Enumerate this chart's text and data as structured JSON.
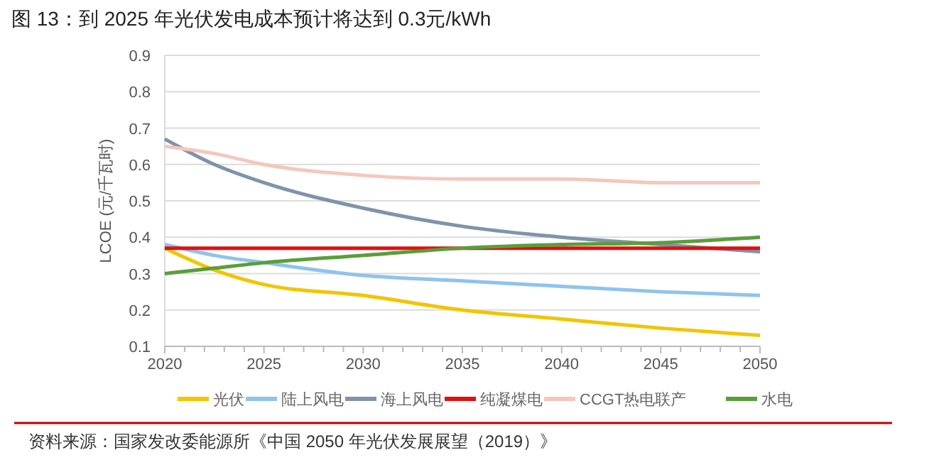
{
  "chart_data": {
    "type": "line",
    "title": "图 13：到 2025 年光伏发电成本预计将达到 0.3元/kWh",
    "ylabel": "LCOE (元/千瓦时)",
    "x": [
      2020,
      2022.5,
      2025,
      2030,
      2035,
      2040,
      2045,
      2050
    ],
    "series": [
      {
        "name": "光伏",
        "color": "#f2c500",
        "values": [
          0.37,
          0.31,
          0.27,
          0.24,
          0.2,
          0.175,
          0.15,
          0.13
        ]
      },
      {
        "name": "陆上风电",
        "color": "#8fc3ec",
        "values": [
          0.38,
          0.35,
          0.33,
          0.295,
          0.28,
          0.265,
          0.25,
          0.24
        ]
      },
      {
        "name": "海上风电",
        "color": "#7f93ab",
        "values": [
          0.67,
          0.6,
          0.55,
          0.48,
          0.43,
          0.4,
          0.38,
          0.36
        ]
      },
      {
        "name": "纯凝煤电",
        "color": "#e01010",
        "values": [
          0.37,
          0.37,
          0.37,
          0.37,
          0.37,
          0.37,
          0.37,
          0.37
        ]
      },
      {
        "name": "CCGT热电联产",
        "color": "#f3c8bc",
        "values": [
          0.65,
          0.63,
          0.6,
          0.57,
          0.56,
          0.56,
          0.55,
          0.55
        ]
      },
      {
        "name": "水电",
        "color": "#5a9e3a",
        "values": [
          0.3,
          0.315,
          0.33,
          0.35,
          0.37,
          0.38,
          0.385,
          0.4
        ]
      }
    ],
    "xlim": [
      2020,
      2050
    ],
    "xticks": [
      2020,
      {
        "value": 2021,
        "label": null
      },
      {
        "value": 2022,
        "label": null
      },
      {
        "value": 2023,
        "label": null
      },
      {
        "value": 2024,
        "label": null
      },
      2025,
      {
        "value": 2026,
        "label": null
      },
      {
        "value": 2027,
        "label": null
      },
      {
        "value": 2028,
        "label": null
      },
      {
        "value": 2029,
        "label": null
      },
      2030,
      {
        "value": 2031,
        "label": null
      },
      {
        "value": 2032,
        "label": null
      },
      {
        "value": 2033,
        "label": null
      },
      {
        "value": 2034,
        "label": null
      },
      2035,
      {
        "value": 2036,
        "label": null
      },
      {
        "value": 2037,
        "label": null
      },
      {
        "value": 2038,
        "label": null
      },
      {
        "value": 2039,
        "label": null
      },
      2040,
      {
        "value": 2041,
        "label": null
      },
      {
        "value": 2042,
        "label": null
      },
      {
        "value": 2043,
        "label": null
      },
      {
        "value": 2044,
        "label": null
      },
      2045,
      {
        "value": 2046,
        "label": null
      },
      {
        "value": 2047,
        "label": null
      },
      {
        "value": 2048,
        "label": null
      },
      {
        "value": 2049,
        "label": null
      },
      2050
    ],
    "ylim": [
      0.1,
      0.9
    ],
    "yticks": [
      0.1,
      0.2,
      0.3,
      0.4,
      0.5,
      0.6,
      0.7,
      0.8,
      0.9
    ],
    "grid": "y",
    "legend": "bottom",
    "marker": "none",
    "line_style": "solid",
    "annotations": [
      "资料来源：国家发改委能源所《中国 2050 年光伏发展展望（2019）》"
    ]
  }
}
